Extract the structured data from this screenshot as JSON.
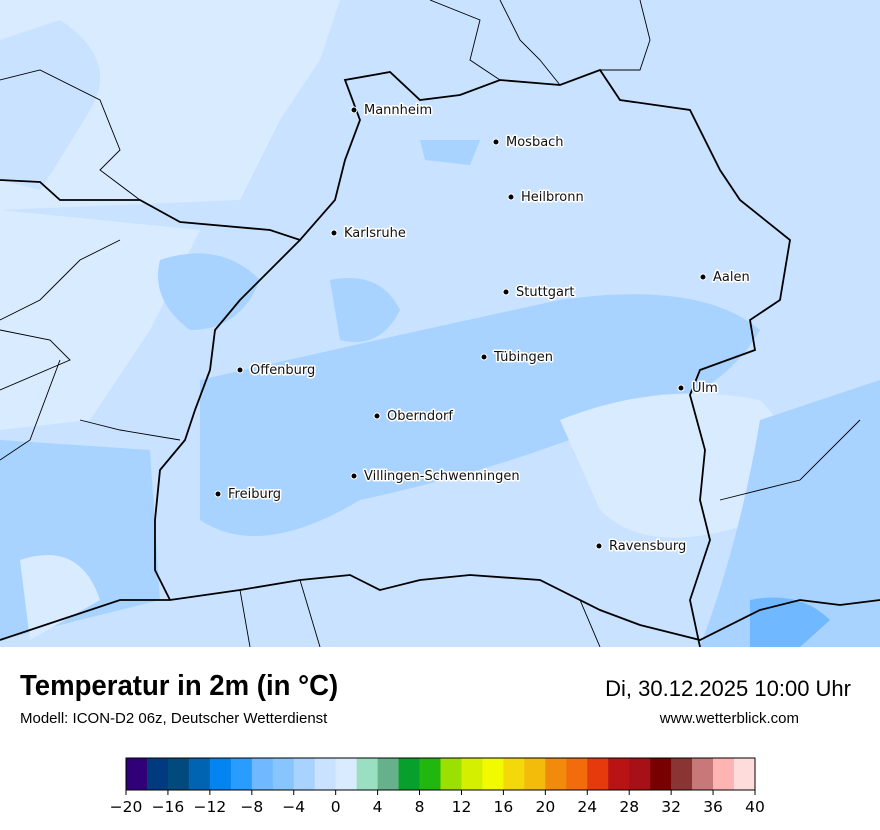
{
  "header": {
    "title": "Temperatur in 2m (in °C)",
    "subtitle": "Modell: ICON-D2 06z, Deutscher Wetterdienst",
    "datetime": "Di, 30.12.2025 10:00 Uhr",
    "website": "www.wetterblick.com"
  },
  "map": {
    "cities": [
      {
        "name": "Mannheim"
      },
      {
        "name": "Mosbach"
      },
      {
        "name": "Heilbronn"
      },
      {
        "name": "Karlsruhe"
      },
      {
        "name": "Aalen"
      },
      {
        "name": "Stuttgart"
      },
      {
        "name": "Tübingen"
      },
      {
        "name": "Offenburg"
      },
      {
        "name": "Ulm"
      },
      {
        "name": "Oberndorf"
      },
      {
        "name": "Villingen-Schwenningen"
      },
      {
        "name": "Freiburg"
      },
      {
        "name": "Ravensburg"
      }
    ],
    "dominant_range_celsius": [
      -4,
      2
    ]
  },
  "legend": {
    "unit": "°C",
    "min": -20,
    "max": 40,
    "step": 2,
    "tick_labels": [
      "−20",
      "−16",
      "−12",
      "−8",
      "−4",
      "0",
      "4",
      "8",
      "12",
      "16",
      "20",
      "24",
      "28",
      "32",
      "36",
      "40"
    ],
    "colors": [
      "#310078",
      "#023a80",
      "#014a7e",
      "#0064b2",
      "#0484f0",
      "#289cff",
      "#70b8ff",
      "#88c4ff",
      "#a8d2ff",
      "#c8e2ff",
      "#d9ebff",
      "#9adfc2",
      "#66b08c",
      "#07a02c",
      "#20b80e",
      "#9be000",
      "#d4f000",
      "#f2fa00",
      "#f4d80a",
      "#f4bc0a",
      "#f28a0c",
      "#f26c0c",
      "#e63a0c",
      "#b81414",
      "#a81018",
      "#780000",
      "#8a3434",
      "#c87878",
      "#ffb4b4",
      "#ffdcdc"
    ]
  }
}
